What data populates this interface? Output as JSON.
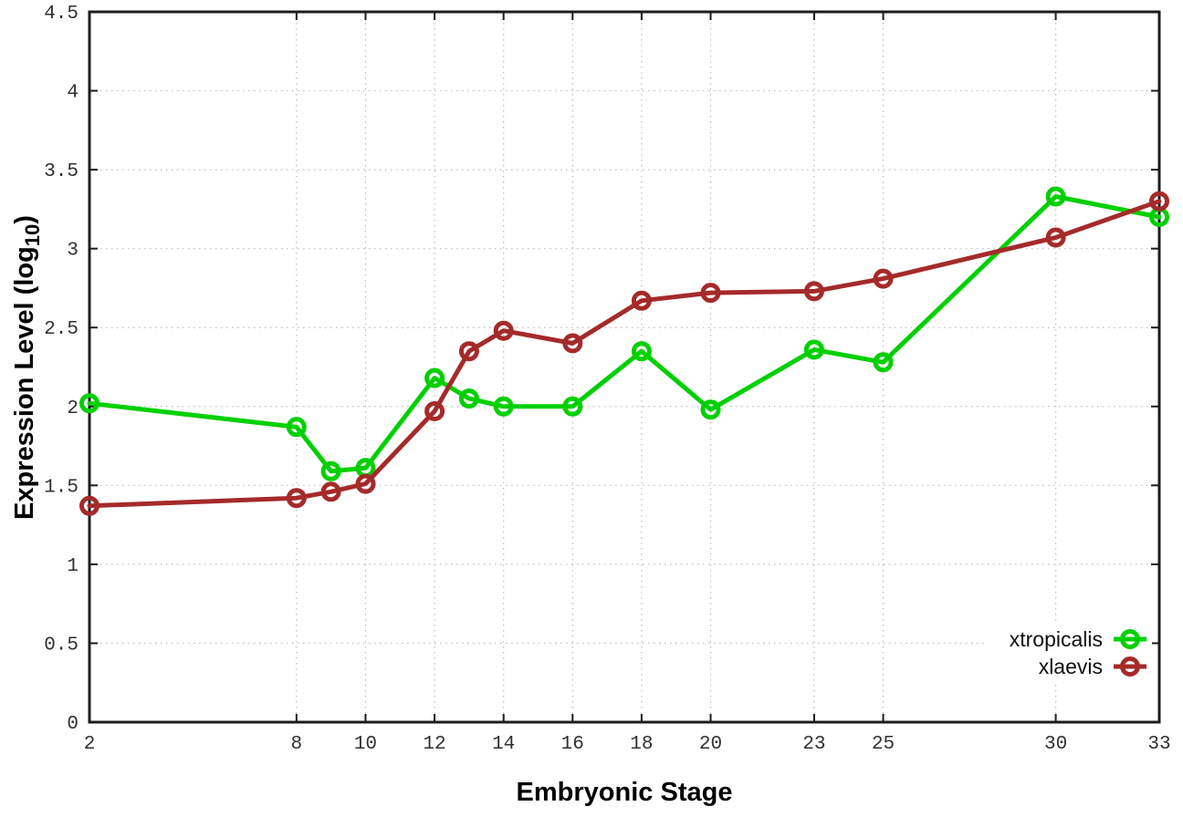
{
  "chart_data": {
    "type": "line",
    "x": [
      2,
      8,
      9,
      10,
      12,
      13,
      14,
      16,
      18,
      20,
      23,
      25,
      30,
      33
    ],
    "series": [
      {
        "name": "xtropicalis",
        "color": "#00d000",
        "values": [
          2.02,
          1.87,
          1.59,
          1.61,
          2.18,
          2.05,
          2.0,
          2.0,
          2.35,
          1.98,
          2.36,
          2.28,
          3.33,
          3.2
        ]
      },
      {
        "name": "xlaevis",
        "color": "#a52a2a",
        "values": [
          1.37,
          1.42,
          1.46,
          1.51,
          1.97,
          2.35,
          2.48,
          2.4,
          2.67,
          2.72,
          2.73,
          2.81,
          3.07,
          3.3
        ]
      }
    ],
    "title": "",
    "xlabel": "Embryonic Stage",
    "ylabel": "Expression Level (log10)",
    "ylabel_parts": {
      "main": "Expression Level (log",
      "sub": "10",
      "tail": ")"
    },
    "xticks": [
      2,
      8,
      10,
      12,
      14,
      16,
      18,
      20,
      23,
      25,
      30,
      33
    ],
    "yticks": [
      0,
      0.5,
      1,
      1.5,
      2,
      2.5,
      3,
      3.5,
      4,
      4.5
    ],
    "xlim": [
      2,
      33
    ],
    "ylim": [
      0,
      4.5
    ],
    "grid": true,
    "legend_position": "bottom-right",
    "marker": "open-circle"
  },
  "colors": {
    "background": "#ffffff",
    "plot_border": "#1c1c1c",
    "grid": "#bdbdbd",
    "tick_text": "#303030",
    "title_text": "#000000"
  }
}
